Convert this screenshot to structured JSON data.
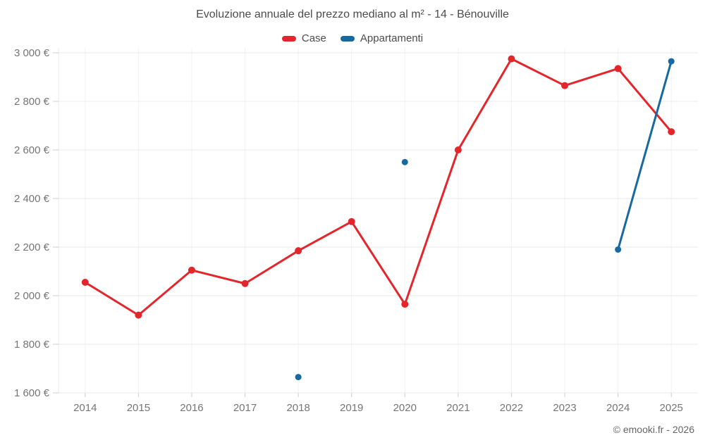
{
  "header": {
    "title": "Evoluzione annuale del prezzo mediano al m² - 14 - Bénouville"
  },
  "legend": {
    "items": [
      {
        "label": "Case",
        "color": "#e2262c"
      },
      {
        "label": "Appartamenti",
        "color": "#17699f"
      }
    ]
  },
  "watermark": "© emooki.fr - 2026",
  "chart_data": {
    "type": "line",
    "title": "Evoluzione annuale del prezzo mediano al m² - 14 - Bénouville",
    "categories": [
      "2014",
      "2015",
      "2016",
      "2017",
      "2018",
      "2019",
      "2020",
      "2021",
      "2022",
      "2023",
      "2024",
      "2025"
    ],
    "series": [
      {
        "name": "Case",
        "color": "#e2262c",
        "values": [
          2055,
          1920,
          2105,
          2050,
          2185,
          2305,
          1965,
          2600,
          2975,
          2865,
          2935,
          2675
        ]
      },
      {
        "name": "Appartamenti",
        "color": "#17699f",
        "values": [
          null,
          null,
          null,
          null,
          1665,
          null,
          2550,
          null,
          null,
          null,
          2190,
          2965
        ]
      }
    ],
    "xlabel": "",
    "ylabel": "",
    "ylim": [
      1600,
      3000
    ],
    "y_ticks": [
      {
        "value": 1600,
        "label": "1 600 €"
      },
      {
        "value": 1800,
        "label": "1 800 €"
      },
      {
        "value": 2000,
        "label": "2 000 €"
      },
      {
        "value": 2200,
        "label": "2 200 €"
      },
      {
        "value": 2400,
        "label": "2 400 €"
      },
      {
        "value": 2600,
        "label": "2 600 €"
      },
      {
        "value": 2800,
        "label": "2 800 €"
      },
      {
        "value": 3000,
        "label": "3 000 €"
      }
    ],
    "grid": true,
    "legend_position": "top"
  }
}
